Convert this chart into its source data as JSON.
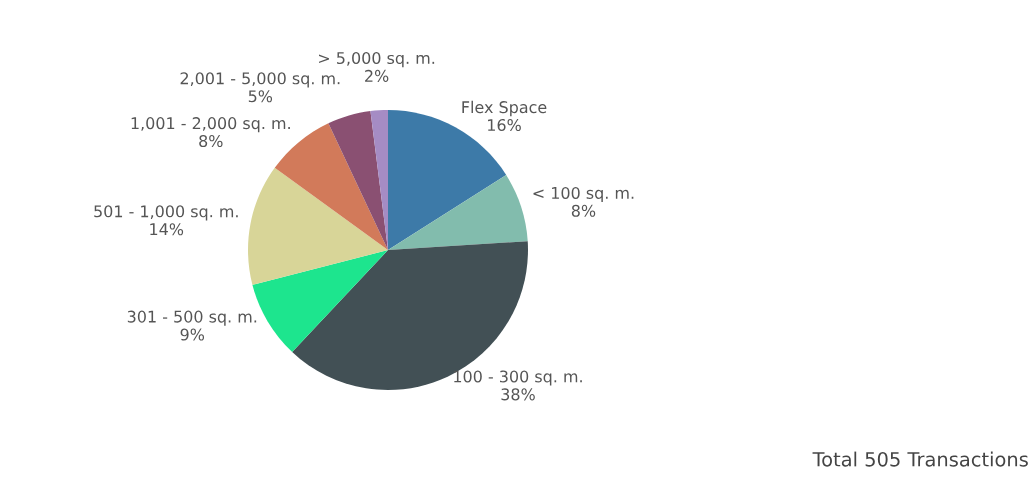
{
  "chart_data": {
    "type": "pie",
    "categories": [
      "Flex Space",
      "< 100 sq. m.",
      "100 - 300 sq. m.",
      "301 - 500 sq. m.",
      "501 - 1,000 sq. m.",
      "1,001 - 2,000 sq. m.",
      "2,001 - 5,000 sq. m.",
      "> 5,000 sq. m."
    ],
    "values": [
      16,
      8,
      38,
      9,
      14,
      8,
      5,
      2
    ],
    "value_labels": [
      "16%",
      "8%",
      "38%",
      "9%",
      "14%",
      "8%",
      "5%",
      "2%"
    ],
    "colors": [
      "#3d7aa8",
      "#82bcad",
      "#425055",
      "#1de58e",
      "#d8d598",
      "#d27a5a",
      "#8a5072",
      "#a58cc4"
    ],
    "annotations": [
      "Total 505 Transactions"
    ],
    "legend": false
  }
}
